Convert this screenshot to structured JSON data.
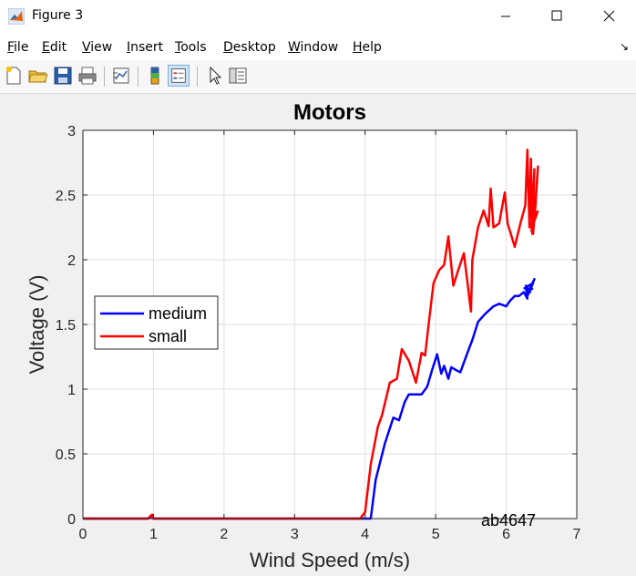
{
  "window": {
    "title": "Figure 3",
    "minimize_icon": "minimize-icon",
    "maximize_icon": "maximize-icon",
    "close_icon": "close-icon"
  },
  "menu": [
    {
      "label": "File",
      "ul": "F",
      "rest": "ile"
    },
    {
      "label": "Edit",
      "ul": "E",
      "rest": "dit"
    },
    {
      "label": "View",
      "ul": "V",
      "rest": "iew"
    },
    {
      "label": "Insert",
      "ul": "I",
      "rest": "nsert"
    },
    {
      "label": "Tools",
      "ul": "T",
      "rest": "ools"
    },
    {
      "label": "Desktop",
      "ul": "D",
      "rest": "esktop"
    },
    {
      "label": "Window",
      "ul": "W",
      "rest": "indow"
    },
    {
      "label": "Help",
      "ul": "H",
      "rest": "elp"
    }
  ],
  "toolbar": [
    "new-figure-icon",
    "open-file-icon",
    "save-icon",
    "print-icon",
    "link-plot-icon",
    "colorbar-icon",
    "legend-icon",
    "pointer-icon",
    "property-inspector-icon"
  ],
  "chart_data": {
    "type": "line",
    "title": "Motors",
    "xlabel": "Wind Speed (m/s)",
    "ylabel": "Voltage (V)",
    "xlim": [
      0,
      7
    ],
    "ylim": [
      0,
      3
    ],
    "xticks": [
      "0",
      "1",
      "2",
      "3",
      "4",
      "5",
      "6",
      "7"
    ],
    "yticks": [
      "0",
      "0.5",
      "1",
      "1.5",
      "2",
      "2.5",
      "3"
    ],
    "grid": true,
    "legend_position": "middle-left",
    "annotation": "ab4647",
    "series": [
      {
        "name": "medium",
        "color": "#0000ff",
        "x": [
          0,
          0.92,
          0.98,
          1.0,
          4.08,
          4.15,
          4.28,
          4.4,
          4.48,
          4.56,
          4.62,
          4.7,
          4.8,
          4.88,
          4.95,
          5.02,
          5.08,
          5.12,
          5.18,
          5.22,
          5.28,
          5.35,
          5.45,
          5.52,
          5.6,
          5.7,
          5.82,
          5.9,
          6.0,
          6.05,
          6.12,
          6.18,
          6.25,
          6.3,
          6.28,
          6.34,
          6.26,
          6.38,
          6.3,
          6.4,
          6.32,
          6.38
        ],
        "y": [
          0,
          0,
          0.02,
          0,
          0,
          0.3,
          0.58,
          0.78,
          0.76,
          0.9,
          0.96,
          0.96,
          0.96,
          1.02,
          1.15,
          1.27,
          1.12,
          1.18,
          1.08,
          1.17,
          1.15,
          1.13,
          1.28,
          1.38,
          1.52,
          1.58,
          1.64,
          1.66,
          1.64,
          1.68,
          1.72,
          1.72,
          1.75,
          1.7,
          1.8,
          1.75,
          1.78,
          1.82,
          1.72,
          1.85,
          1.76,
          1.78
        ]
      },
      {
        "name": "small",
        "color": "#ff0000",
        "x": [
          0,
          0.92,
          0.98,
          1.0,
          3.93,
          4.0,
          4.08,
          4.18,
          4.24,
          4.35,
          4.45,
          4.52,
          4.62,
          4.72,
          4.8,
          4.85,
          4.9,
          4.97,
          5.05,
          5.12,
          5.18,
          5.25,
          5.32,
          5.4,
          5.5,
          5.52,
          5.6,
          5.68,
          5.75,
          5.78,
          5.82,
          5.9,
          5.98,
          6.02,
          6.12,
          6.2,
          6.27,
          6.3,
          6.33,
          6.35,
          6.37,
          6.4,
          6.36,
          6.42,
          6.38,
          6.45,
          6.4,
          6.45
        ],
        "y": [
          0,
          0,
          0.03,
          0,
          0,
          0.05,
          0.42,
          0.71,
          0.8,
          1.05,
          1.08,
          1.31,
          1.22,
          1.05,
          1.28,
          1.26,
          1.5,
          1.82,
          1.92,
          1.96,
          2.18,
          1.8,
          1.92,
          2.05,
          1.6,
          2.0,
          2.25,
          2.38,
          2.26,
          2.55,
          2.25,
          2.28,
          2.52,
          2.28,
          2.1,
          2.28,
          2.42,
          2.85,
          2.25,
          2.78,
          2.2,
          2.7,
          2.22,
          2.45,
          2.2,
          2.72,
          2.3,
          2.38
        ]
      }
    ]
  }
}
